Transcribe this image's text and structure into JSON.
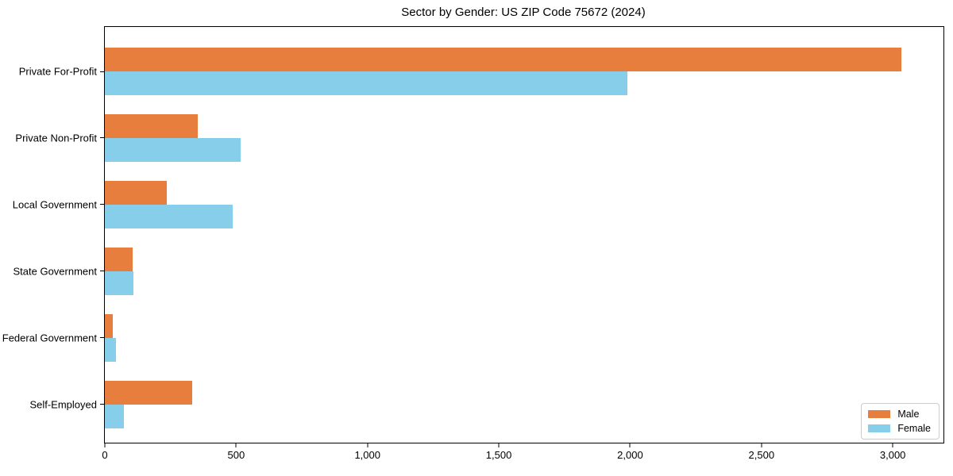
{
  "chart_data": {
    "type": "bar",
    "orientation": "horizontal",
    "title": "Sector by Gender: US ZIP Code 75672 (2024)",
    "categories": [
      "Private For-Profit",
      "Private Non-Profit",
      "Local Government",
      "State Government",
      "Federal Government",
      "Self-Employed"
    ],
    "series": [
      {
        "name": "Male",
        "color": "#e87e3e",
        "values": [
          3033,
          353,
          236,
          106,
          29,
          332
        ]
      },
      {
        "name": "Female",
        "color": "#87ceeb",
        "values": [
          1990,
          516,
          487,
          109,
          41,
          72
        ]
      }
    ],
    "xlim": [
      0,
      3193
    ],
    "x_ticks": [
      0,
      500,
      1000,
      1500,
      2000,
      2500,
      3000
    ],
    "x_tick_labels": [
      "0",
      "500",
      "1,000",
      "1,500",
      "2,000",
      "2,500",
      "3,000"
    ],
    "xlabel": "",
    "ylabel": "",
    "grid": false,
    "legend": {
      "position": "lower right",
      "entries": [
        "Male",
        "Female"
      ]
    },
    "colors": {
      "male": "#e87e3e",
      "female": "#87ceeb",
      "spine": "#000000",
      "background": "#ffffff",
      "legend_border": "#cccccc"
    }
  }
}
